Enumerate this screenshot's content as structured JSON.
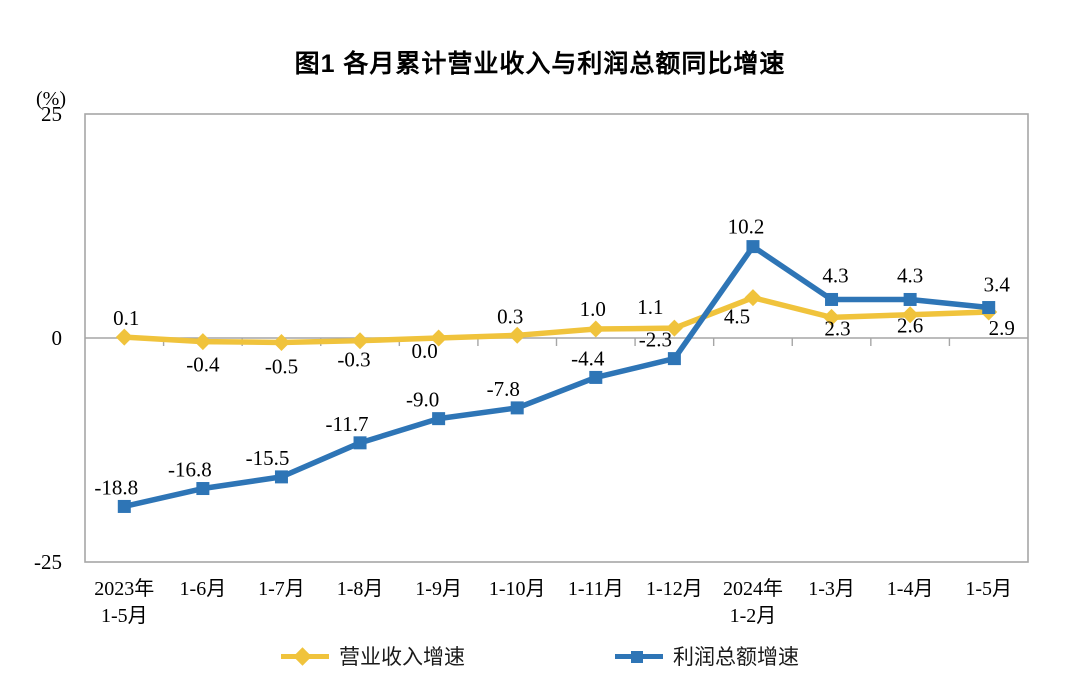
{
  "title": "图1  各月累计营业收入与利润总额同比增速",
  "chart_data": {
    "type": "line",
    "title": "图1  各月累计营业收入与利润总额同比增速",
    "unit_label": "(%)",
    "ylim": [
      -25,
      25
    ],
    "yticks": [
      {
        "value": 25,
        "label": "25"
      },
      {
        "value": 0,
        "label": "0"
      },
      {
        "value": -25,
        "label": "-25"
      }
    ],
    "grid": "zero-baseline-only",
    "legend_position": "bottom",
    "axis_color": "#a6a6a6",
    "label_color": "#000000",
    "categories": [
      "2023年\n1-5月",
      "1-6月",
      "1-7月",
      "1-8月",
      "1-9月",
      "1-10月",
      "1-11月",
      "1-12月",
      "2024年\n1-2月",
      "1-3月",
      "1-4月",
      "1-5月"
    ],
    "series": [
      {
        "name": "营业收入增速",
        "color": "#f0c33c",
        "marker": "diamond",
        "values": [
          0.1,
          -0.4,
          -0.5,
          -0.3,
          0.0,
          0.3,
          1.0,
          1.1,
          4.5,
          2.3,
          2.6,
          2.9
        ],
        "labels": [
          "0.1",
          "-0.4",
          "-0.5",
          "-0.3",
          "0.0",
          "0.3",
          "1.0",
          "1.1",
          "4.5",
          "2.3",
          "2.6",
          "2.9"
        ],
        "label_dx": [
          2,
          0,
          0,
          -6,
          -14,
          -7,
          -3,
          -24,
          -16,
          6,
          0,
          13
        ],
        "label_dy": [
          -12,
          30,
          31,
          26,
          20,
          -12,
          -13,
          -14,
          26,
          18,
          18,
          23
        ]
      },
      {
        "name": "利润总额增速",
        "color": "#2e75b6",
        "marker": "square",
        "values": [
          -18.8,
          -16.8,
          -15.5,
          -11.7,
          -9.0,
          -7.8,
          -4.4,
          -2.3,
          10.2,
          4.3,
          4.3,
          3.4
        ],
        "labels": [
          "-18.8",
          "-16.8",
          "-15.5",
          "-11.7",
          "-9.0",
          "-7.8",
          "-4.4",
          "-2.3",
          "10.2",
          "4.3",
          "4.3",
          "3.4"
        ],
        "label_dx": [
          -8,
          -13,
          -14,
          -13,
          -16,
          -14,
          -8,
          -19,
          -7,
          4,
          0,
          8
        ],
        "label_dy": [
          -12,
          -12,
          -12,
          -12,
          -12,
          -12,
          -12,
          -12,
          -13,
          -17,
          -17,
          -16
        ]
      }
    ]
  },
  "legend": {
    "items": [
      {
        "label": "营业收入增速"
      },
      {
        "label": "利润总额增速"
      }
    ]
  }
}
